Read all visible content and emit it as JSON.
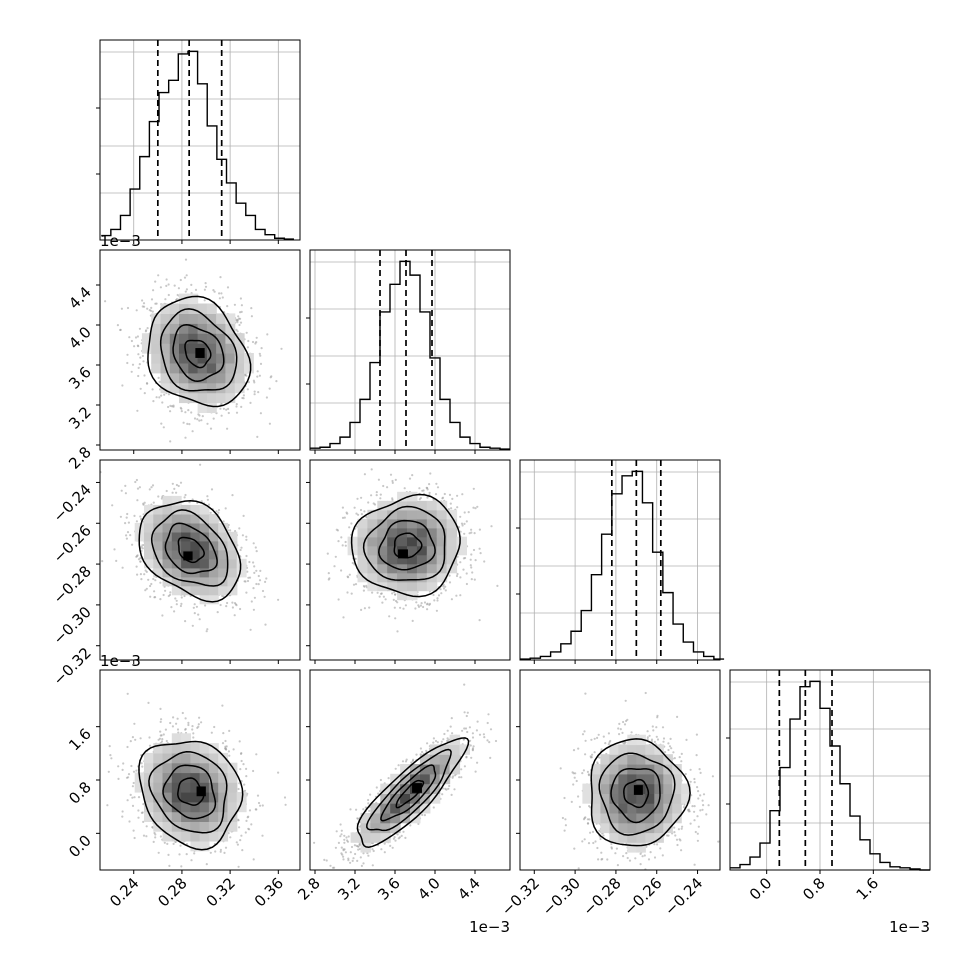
{
  "chart_data": {
    "type": "corner",
    "parameters": [
      {
        "range": [
          0.212,
          0.378
        ],
        "ticks": [
          0.24,
          0.28,
          0.32,
          0.36
        ],
        "tick_labels": [
          "0.24",
          "0.28",
          "0.32",
          "0.36"
        ],
        "offset_text": "",
        "quantiles": [
          0.26,
          0.286,
          0.313
        ],
        "hist_bin_centers": [
          0.217,
          0.225,
          0.233,
          0.241,
          0.249,
          0.257,
          0.265,
          0.273,
          0.281,
          0.289,
          0.297,
          0.305,
          0.313,
          0.321,
          0.329,
          0.337,
          0.345,
          0.353,
          0.361,
          0.369
        ],
        "hist_counts": [
          5,
          12,
          28,
          58,
          95,
          135,
          168,
          182,
          212,
          215,
          178,
          130,
          92,
          65,
          42,
          28,
          12,
          6,
          2,
          1
        ],
        "peak": 0.291,
        "sd": 0.021
      },
      {
        "range": [
          2.75,
          4.75
        ],
        "ticks": [
          2.8,
          3.2,
          3.6,
          4.0,
          4.4
        ],
        "tick_labels": [
          "2.8",
          "3.2",
          "3.6",
          "4.0",
          "4.4"
        ],
        "offset_text": "1e−3",
        "quantiles": [
          3.45,
          3.71,
          3.97
        ],
        "hist_bin_centers": [
          2.8,
          2.9,
          3.0,
          3.1,
          3.2,
          3.3,
          3.4,
          3.5,
          3.6,
          3.7,
          3.8,
          3.9,
          4.0,
          4.1,
          4.2,
          4.3,
          4.4,
          4.5,
          4.6,
          4.7
        ],
        "hist_counts": [
          2,
          3,
          7,
          14,
          30,
          55,
          95,
          150,
          180,
          205,
          190,
          150,
          100,
          55,
          30,
          14,
          7,
          3,
          2,
          1
        ],
        "peak": 3.72,
        "sd": 0.26
      },
      {
        "range": [
          -0.327,
          -0.229
        ],
        "ticks": [
          -0.32,
          -0.3,
          -0.28,
          -0.26,
          -0.24
        ],
        "tick_labels": [
          "−0.32",
          "−0.30",
          "−0.28",
          "−0.26",
          "−0.24"
        ],
        "offset_text": "1e−3",
        "quantiles": [
          -0.282,
          -0.27,
          -0.258
        ],
        "hist_bin_centers": [
          -0.3245,
          -0.3195,
          -0.3145,
          -0.3095,
          -0.3045,
          -0.2995,
          -0.2945,
          -0.2895,
          -0.2845,
          -0.2795,
          -0.2745,
          -0.2695,
          -0.2645,
          -0.2595,
          -0.2545,
          -0.2495,
          -0.2445,
          -0.2395,
          -0.2345,
          -0.2295
        ],
        "hist_counts": [
          1,
          2,
          4,
          9,
          18,
          32,
          55,
          95,
          140,
          185,
          205,
          210,
          175,
          120,
          75,
          40,
          20,
          9,
          4,
          1
        ],
        "peak": -0.271,
        "sd": 0.012
      },
      {
        "range": [
          -0.55,
          2.45
        ],
        "ticks": [
          0.0,
          0.8,
          1.6
        ],
        "tick_labels": [
          "0.0",
          "0.8",
          "1.6"
        ],
        "offset_text": "1e−3",
        "quantiles": [
          0.19,
          0.58,
          0.98
        ],
        "hist_bin_centers": [
          -0.475,
          -0.325,
          -0.175,
          -0.025,
          0.125,
          0.275,
          0.425,
          0.575,
          0.725,
          0.875,
          1.025,
          1.175,
          1.325,
          1.475,
          1.625,
          1.775,
          1.925,
          2.075,
          2.225,
          2.375
        ],
        "hist_counts": [
          2,
          5,
          12,
          25,
          55,
          95,
          140,
          170,
          175,
          150,
          115,
          80,
          50,
          28,
          15,
          7,
          3,
          2,
          1,
          0
        ],
        "peak": 0.59,
        "sd": 0.4
      }
    ],
    "pairs": [
      {
        "row": 1,
        "col": 0,
        "peak": [
          0.293,
          3.72
        ],
        "sd": [
          0.021,
          0.27
        ],
        "rho": -0.2,
        "mode": [
          0.295,
          3.72
        ]
      },
      {
        "row": 2,
        "col": 0,
        "peak": [
          0.287,
          -0.273
        ],
        "sd": [
          0.021,
          0.012
        ],
        "rho": -0.3,
        "mode": [
          0.285,
          -0.276
        ]
      },
      {
        "row": 2,
        "col": 1,
        "peak": [
          3.72,
          -0.271
        ],
        "sd": [
          0.27,
          0.012
        ],
        "rho": 0.05,
        "mode": [
          3.68,
          -0.275
        ]
      },
      {
        "row": 3,
        "col": 0,
        "peak": [
          0.287,
          0.62
        ],
        "sd": [
          0.021,
          0.4
        ],
        "rho": -0.15,
        "mode": [
          0.296,
          0.63
        ]
      },
      {
        "row": 3,
        "col": 1,
        "peak": [
          3.75,
          0.6
        ],
        "sd": [
          0.27,
          0.4
        ],
        "rho": 0.85,
        "mode": [
          3.82,
          0.68
        ]
      },
      {
        "row": 3,
        "col": 2,
        "peak": [
          -0.27,
          0.6
        ],
        "sd": [
          0.012,
          0.4
        ],
        "rho": 0.0,
        "mode": [
          -0.269,
          0.65
        ]
      }
    ],
    "contour_levels_sigma": [
      0.5,
      1.0,
      1.5,
      2.0
    ],
    "grid": true,
    "colors": {
      "line": "#000000",
      "scatter": "#9a9a9a",
      "grid": "#b0b0b0"
    }
  }
}
